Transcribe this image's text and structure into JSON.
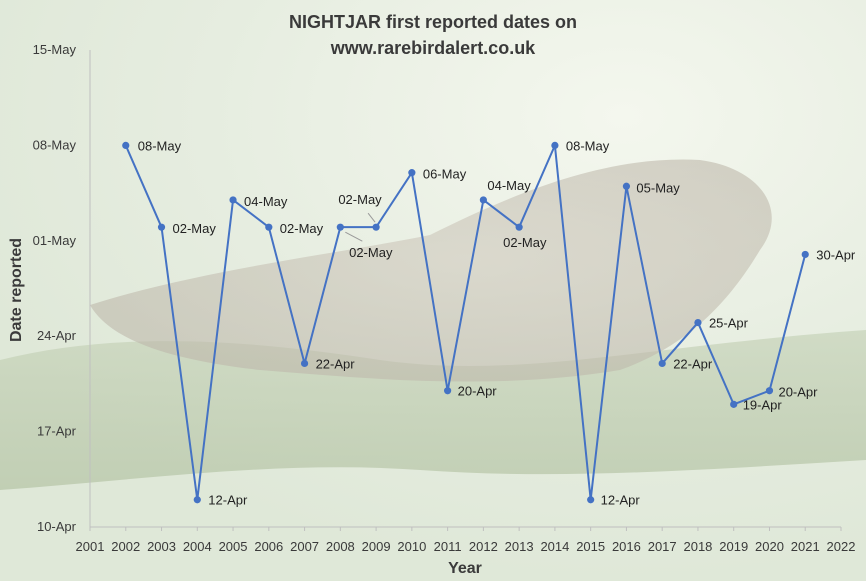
{
  "chart_data": {
    "type": "line",
    "title_line1": "NIGHTJAR first reported dates on",
    "title_line2": "www.rarebirdalert.co.uk",
    "xlabel": "Year",
    "ylabel": "Date reported",
    "x_ticks": [
      "2001",
      "2002",
      "2003",
      "2004",
      "2005",
      "2006",
      "2007",
      "2008",
      "2009",
      "2010",
      "2011",
      "2012",
      "2013",
      "2014",
      "2015",
      "2016",
      "2017",
      "2018",
      "2019",
      "2020",
      "2021",
      "2022"
    ],
    "y_ticks": [
      "10-Apr",
      "17-Apr",
      "24-Apr",
      "01-May",
      "08-May",
      "15-May"
    ],
    "y_tick_days": [
      0,
      7,
      14,
      21,
      28,
      35
    ],
    "xlim": [
      2001,
      2022
    ],
    "ylim_days": [
      0,
      35
    ],
    "grid": false,
    "series": [
      {
        "color": "#4472c4",
        "points": [
          {
            "year": 2002,
            "day": 28,
            "label": "08-May"
          },
          {
            "year": 2003,
            "day": 22,
            "label": "02-May"
          },
          {
            "year": 2004,
            "day": 2,
            "label": "12-Apr"
          },
          {
            "year": 2005,
            "day": 24,
            "label": "04-May"
          },
          {
            "year": 2006,
            "day": 22,
            "label": "02-May"
          },
          {
            "year": 2007,
            "day": 12,
            "label": "22-Apr"
          },
          {
            "year": 2008,
            "day": 22,
            "label": "02-May"
          },
          {
            "year": 2009,
            "day": 22,
            "label": "02-May"
          },
          {
            "year": 2010,
            "day": 26,
            "label": "06-May"
          },
          {
            "year": 2011,
            "day": 10,
            "label": "20-Apr"
          },
          {
            "year": 2012,
            "day": 24,
            "label": "04-May"
          },
          {
            "year": 2013,
            "day": 22,
            "label": "02-May"
          },
          {
            "year": 2014,
            "day": 28,
            "label": "08-May"
          },
          {
            "year": 2015,
            "day": 2,
            "label": "12-Apr"
          },
          {
            "year": 2016,
            "day": 25,
            "label": "05-May"
          },
          {
            "year": 2017,
            "day": 12,
            "label": "22-Apr"
          },
          {
            "year": 2018,
            "day": 15,
            "label": "25-Apr"
          },
          {
            "year": 2019,
            "day": 9,
            "label": "19-Apr"
          },
          {
            "year": 2020,
            "day": 10,
            "label": "20-Apr"
          },
          {
            "year": 2021,
            "day": 20,
            "label": "30-Apr"
          }
        ]
      }
    ]
  }
}
